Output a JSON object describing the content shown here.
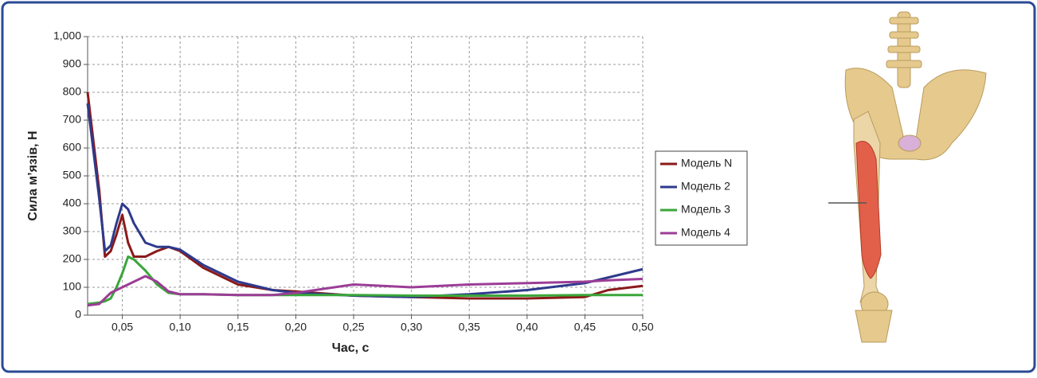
{
  "chart_data": {
    "type": "line",
    "xlabel": "Час, с",
    "ylabel": "Сила м’язів, Н",
    "x": [
      0.02,
      0.03,
      0.035,
      0.04,
      0.045,
      0.05,
      0.055,
      0.06,
      0.07,
      0.08,
      0.09,
      0.1,
      0.12,
      0.15,
      0.18,
      0.2,
      0.25,
      0.3,
      0.35,
      0.4,
      0.45,
      0.47,
      0.5
    ],
    "series": [
      {
        "name": "Модель N",
        "color": "#8b1a1a",
        "values": [
          800,
          450,
          210,
          230,
          290,
          360,
          260,
          210,
          210,
          230,
          245,
          230,
          170,
          110,
          90,
          85,
          70,
          65,
          60,
          60,
          65,
          90,
          105
        ]
      },
      {
        "name": "Модель 2",
        "color": "#2e3a8c",
        "values": [
          760,
          420,
          230,
          250,
          330,
          400,
          380,
          330,
          260,
          245,
          245,
          235,
          180,
          120,
          90,
          80,
          70,
          65,
          75,
          90,
          115,
          135,
          165
        ]
      },
      {
        "name": "Модель 3",
        "color": "#3aa63a",
        "values": [
          40,
          45,
          50,
          60,
          100,
          150,
          210,
          200,
          160,
          110,
          80,
          75,
          75,
          72,
          72,
          72,
          72,
          70,
          70,
          70,
          72,
          72,
          72
        ]
      },
      {
        "name": "Модель 4",
        "color": "#9b3d96",
        "values": [
          35,
          40,
          60,
          80,
          90,
          100,
          110,
          120,
          140,
          120,
          85,
          75,
          75,
          72,
          72,
          80,
          110,
          100,
          110,
          115,
          120,
          125,
          130
        ]
      }
    ],
    "xlim": [
      0.02,
      0.5
    ],
    "ylim": [
      0,
      1000
    ],
    "xticks": [
      {
        "value": 0.05,
        "label": "0,05"
      },
      {
        "value": 0.1,
        "label": "0,10"
      },
      {
        "value": 0.15,
        "label": "0,15"
      },
      {
        "value": 0.2,
        "label": "0,20"
      },
      {
        "value": 0.25,
        "label": "0,25"
      },
      {
        "value": 0.3,
        "label": "0,30"
      },
      {
        "value": 0.35,
        "label": "0,35"
      },
      {
        "value": 0.4,
        "label": "0,40"
      },
      {
        "value": 0.45,
        "label": "0,45"
      },
      {
        "value": 0.5,
        "label": "0,50"
      }
    ],
    "yticks": [
      0,
      100,
      200,
      300,
      400,
      500,
      600,
      700,
      800,
      900,
      {
        "value": 1000,
        "label": "1,000"
      }
    ],
    "grid": true
  }
}
